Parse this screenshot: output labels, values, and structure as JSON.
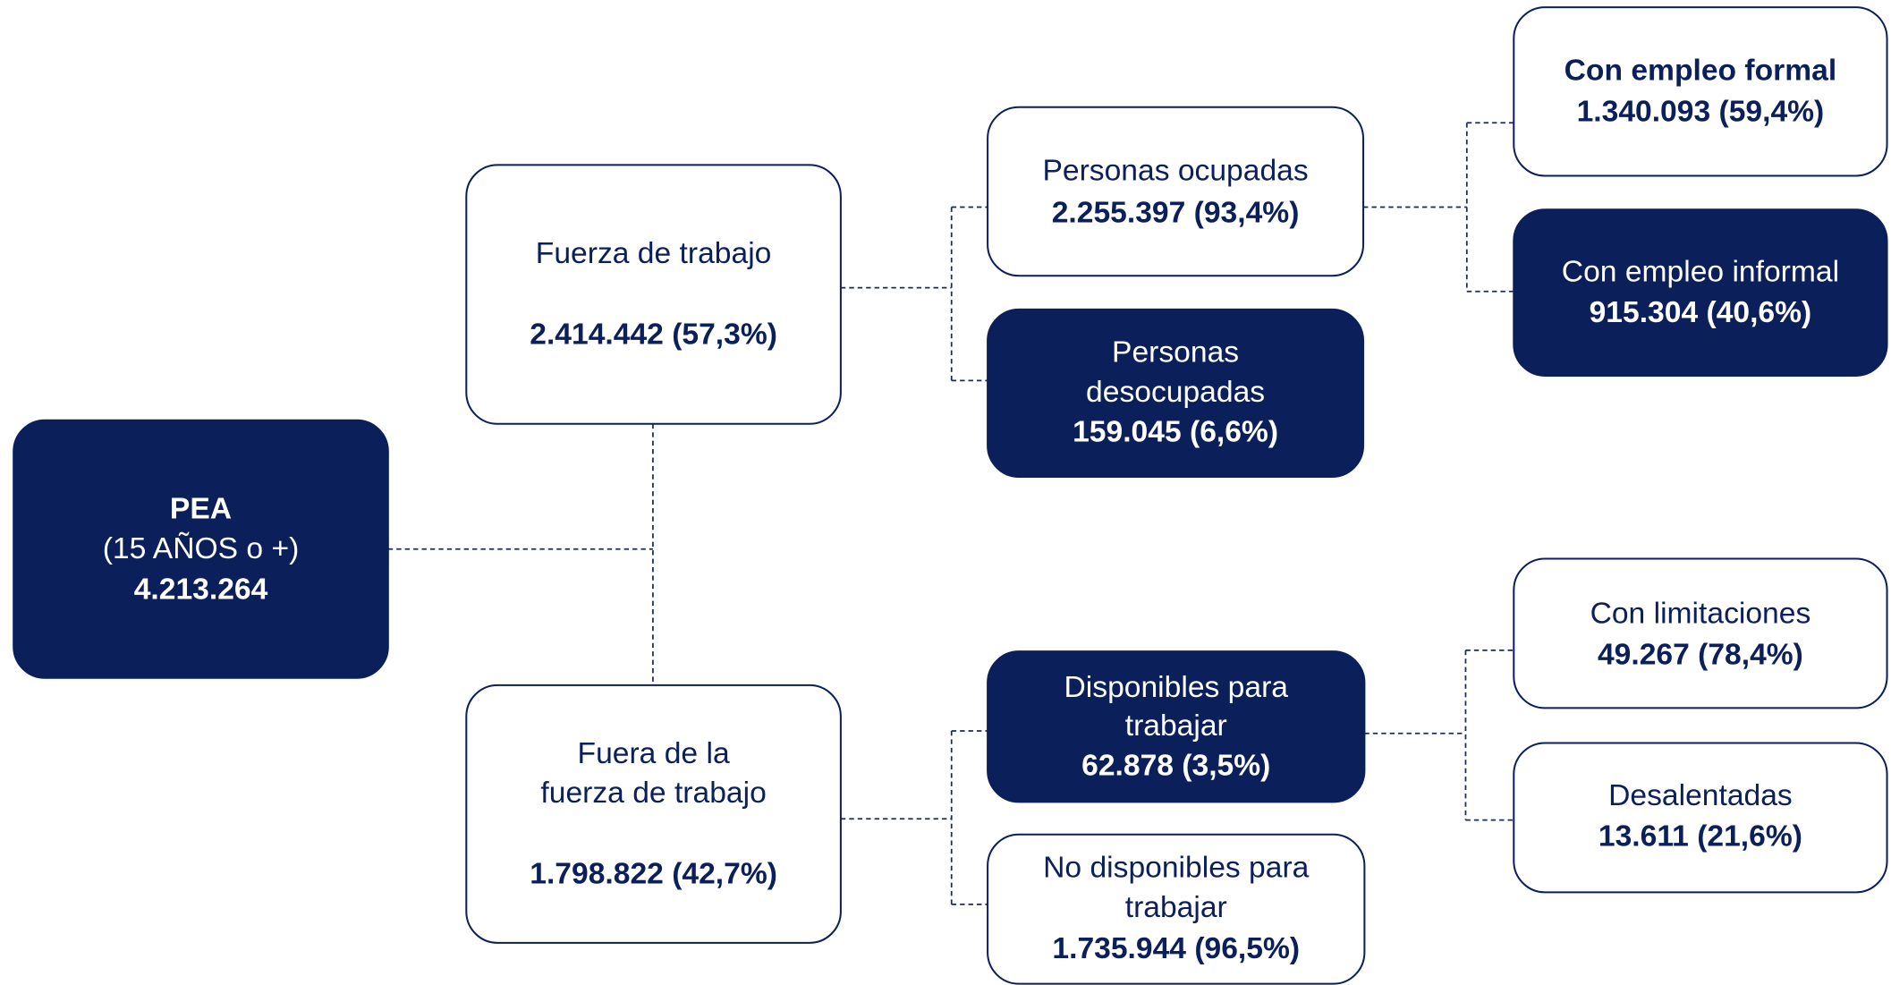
{
  "nodes": [
    {
      "lines": [
        "PEA",
        "(15 AÑOS o +)"
      ],
      "value": "4.213.264"
    },
    {
      "lines": [
        "Fuerza de trabajo"
      ],
      "value": "2.414.442 (57,3%)"
    },
    {
      "lines": [
        "Fuera de la",
        "fuerza de trabajo"
      ],
      "value": "1.798.822 (42,7%)"
    },
    {
      "lines": [
        "Personas ocupadas"
      ],
      "value": "2.255.397 (93,4%)"
    },
    {
      "lines": [
        "Personas",
        "desocupadas"
      ],
      "value": "159.045 (6,6%)"
    },
    {
      "lines": [
        "Disponibles para",
        "trabajar"
      ],
      "value": "62.878 (3,5%)"
    },
    {
      "lines": [
        "No disponibles para",
        "trabajar"
      ],
      "value": "1.735.944 (96,5%)"
    },
    {
      "lines": [
        "Con empleo formal"
      ],
      "value": "1.340.093 (59,4%)"
    },
    {
      "lines": [
        "Con empleo informal"
      ],
      "value": "915.304 (40,6%)"
    },
    {
      "lines": [
        "Con limitaciones"
      ],
      "value": "49.267 (78,4%)"
    },
    {
      "lines": [
        "Desalentadas"
      ],
      "value": "13.611 (21,6%)"
    }
  ]
}
